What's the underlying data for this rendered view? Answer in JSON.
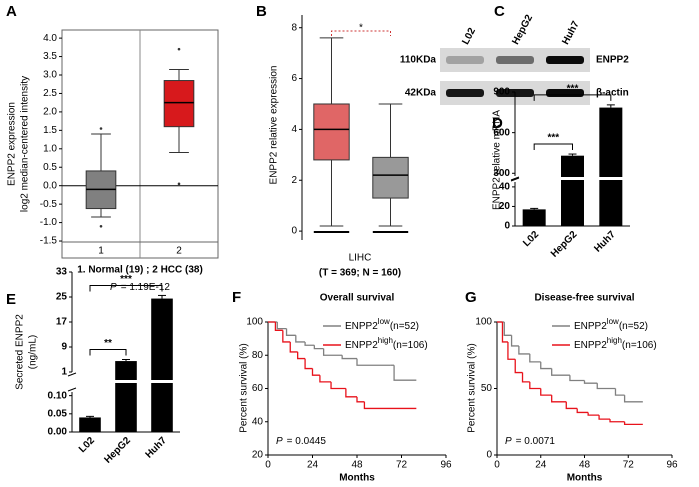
{
  "chart_data": [
    {
      "panel": "A",
      "type": "box",
      "ylabel": [
        "ENPP2 expression",
        "log2 median-centered intensity"
      ],
      "categories": [
        "1",
        "2"
      ],
      "xlabel": "1. Normal (19) ; 2 HCC (38)",
      "p_label": "P",
      "p_value": "= 1.19E-12",
      "frame": true,
      "zero_line": true,
      "ylim": [
        -1.96,
        4.22
      ],
      "yticks": [
        {
          "value": 4,
          "label": "4.0"
        },
        3.5,
        {
          "value": 3,
          "label": "3.0"
        },
        2.5,
        {
          "value": 2,
          "label": "2.0"
        },
        1.5,
        {
          "value": 1,
          "label": "1.0"
        },
        0.5,
        {
          "value": 0,
          "label": "0.0"
        },
        -0.5,
        {
          "value": -1,
          "label": "-1.0"
        },
        -1.5
      ],
      "boxes": [
        {
          "color": "#808080",
          "min": -0.85,
          "q1": -0.62,
          "median": -0.1,
          "q3": 0.4,
          "max": 1.4,
          "outliers": [
            1.55,
            -1.1
          ]
        },
        {
          "color": "#d7191c",
          "min": 0.9,
          "q1": 1.6,
          "median": 2.25,
          "q3": 2.85,
          "max": 3.15,
          "outliers": [
            3.7,
            0.05
          ]
        }
      ]
    },
    {
      "panel": "B",
      "type": "box",
      "ylabel": "ENPP2 relative expression",
      "xlabel": "LIHC",
      "subtitle": "(T = 369; N = 160)",
      "significance": "*",
      "ylim": [
        -0.35,
        8.5
      ],
      "yticks": [
        0,
        2,
        4,
        6,
        8
      ],
      "boxes": [
        {
          "color": "#e06666",
          "min": 0.2,
          "q1": 2.8,
          "median": 4.0,
          "q3": 5.0,
          "max": 7.6,
          "outliers": []
        },
        {
          "color": "#999999",
          "min": 0.2,
          "q1": 1.3,
          "median": 2.2,
          "q3": 2.9,
          "max": 5.0,
          "outliers": []
        }
      ]
    },
    {
      "panel": "C",
      "type": "blot",
      "lanes": [
        "L02",
        "HepG2",
        "Huh7"
      ],
      "rows": [
        {
          "name": "ENPP2",
          "size": "110KDa"
        },
        {
          "name": "β-actin",
          "size": "42KDa"
        }
      ]
    },
    {
      "panel": "D",
      "type": "broken_bar",
      "ylabel": "ENPP2 relative mRNA",
      "categories": [
        "L02",
        "HepG2",
        "Huh7"
      ],
      "values": [
        17,
        430,
        785
      ],
      "errors": [
        1,
        12,
        20
      ],
      "color": "#000000",
      "ylim": [
        0,
        900
      ],
      "axis_break": [
        45,
        280
      ],
      "yticks": [
        0,
        20,
        40,
        300,
        600,
        900
      ],
      "significance": [
        null,
        "***",
        "***"
      ]
    },
    {
      "panel": "E",
      "type": "broken_bar",
      "ylabel": [
        "Secreted ENPP2",
        "(ng/mL)"
      ],
      "categories": [
        "L02",
        "HepG2",
        "Huh7"
      ],
      "values": [
        0.04,
        4.5,
        24.5
      ],
      "errors": [
        0.003,
        0.5,
        1
      ],
      "color": "#000000",
      "ylim": [
        0,
        33
      ],
      "axis_break": [
        0.11,
        1
      ],
      "yticks": [
        {
          "value": 0,
          "label": "0.00"
        },
        0.05,
        {
          "value": 0.1,
          "label": "0.10"
        },
        1,
        9,
        17,
        25,
        33
      ],
      "significance": [
        null,
        "**",
        "***"
      ]
    },
    {
      "panel": "F",
      "type": "km",
      "title": "Overall survival",
      "ylabel": "Percent survival (%)",
      "xlabel": "Months",
      "p_label": "P",
      "p_value": "= 0.0445",
      "xlim": [
        0,
        96
      ],
      "ylim": [
        20,
        100
      ],
      "xticks": [
        0,
        24,
        48,
        72,
        96
      ],
      "yticks": [
        20,
        40,
        60,
        80,
        100
      ],
      "series": [
        {
          "name": "ENPP2",
          "superscript": "low",
          "suffix": "(n=52)",
          "color": "#808080",
          "x": [
            0,
            5,
            10,
            15,
            20,
            25,
            30,
            40,
            48,
            66,
            68,
            80
          ],
          "y": [
            100,
            96,
            92,
            88,
            86,
            84,
            80,
            78,
            74,
            74,
            65,
            65
          ]
        },
        {
          "name": "ENPP2",
          "superscript": "high",
          "suffix": "(n=106)",
          "color": "#e8121b",
          "x": [
            0,
            4,
            8,
            12,
            16,
            20,
            24,
            28,
            34,
            42,
            48,
            52,
            80
          ],
          "y": [
            100,
            95,
            88,
            82,
            78,
            72,
            68,
            64,
            60,
            55,
            52,
            48,
            48
          ]
        }
      ]
    },
    {
      "panel": "G",
      "type": "km",
      "title": "Disease-free survival",
      "ylabel": "Percent survival (%)",
      "xlabel": "Months",
      "p_label": "P",
      "p_value": "= 0.0071",
      "xlim": [
        0,
        96
      ],
      "ylim": [
        0,
        100
      ],
      "xticks": [
        0,
        24,
        48,
        72,
        96
      ],
      "yticks": [
        0,
        50,
        100
      ],
      "series": [
        {
          "name": "ENPP2",
          "superscript": "low",
          "suffix": "(n=52)",
          "color": "#808080",
          "x": [
            0,
            4,
            8,
            12,
            18,
            24,
            30,
            40,
            48,
            55,
            65,
            70,
            80
          ],
          "y": [
            100,
            90,
            82,
            76,
            70,
            65,
            60,
            56,
            54,
            50,
            45,
            40,
            40
          ]
        },
        {
          "name": "ENPP2",
          "superscript": "high",
          "suffix": "(n=106)",
          "color": "#e8121b",
          "x": [
            0,
            3,
            6,
            10,
            14,
            18,
            24,
            30,
            38,
            44,
            50,
            56,
            62,
            70,
            80
          ],
          "y": [
            100,
            85,
            72,
            62,
            55,
            50,
            45,
            40,
            35,
            32,
            30,
            27,
            25,
            23,
            23
          ]
        }
      ]
    }
  ]
}
